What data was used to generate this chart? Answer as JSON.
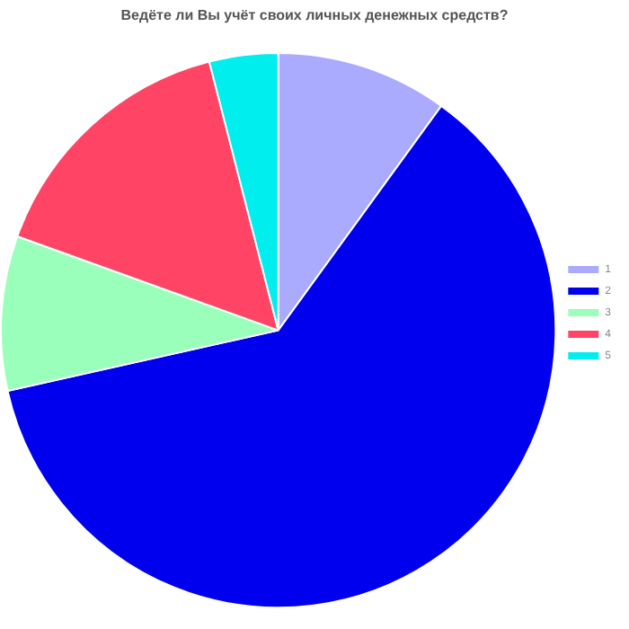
{
  "chart_data": {
    "type": "pie",
    "title": "Ведёте ли Вы учёт своих личных денежных средств?",
    "categories": [
      "1",
      "2",
      "3",
      "4",
      "5"
    ],
    "values": [
      10,
      61.5,
      9,
      15.5,
      4
    ],
    "colors": [
      "#aaaaff",
      "#0000ee",
      "#99ffbb",
      "#ff4466",
      "#00eeee"
    ],
    "legend": "right"
  }
}
